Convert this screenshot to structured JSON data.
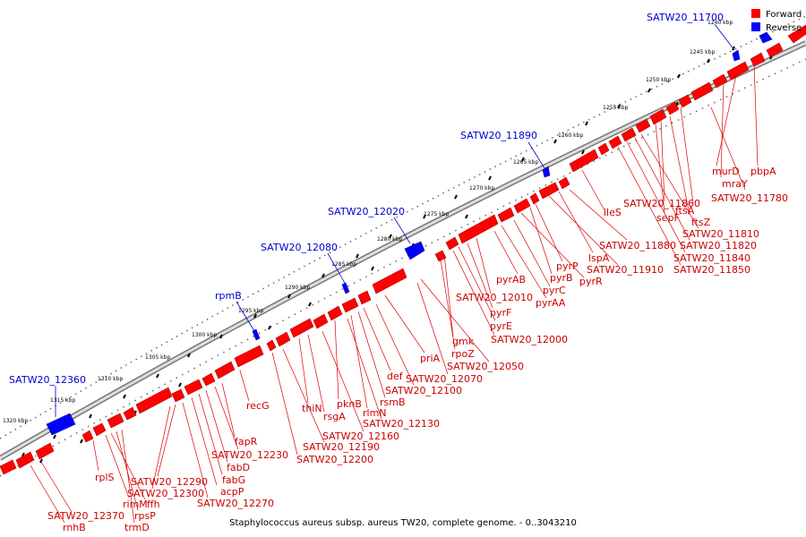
{
  "caption": "Staphylococcus aureus subsp. aureus TW20, complete genome. - 0..3043210",
  "legend": [
    {
      "label": "Forward",
      "color": "#ff0000"
    },
    {
      "label": "Reverse",
      "color": "#0000ff"
    }
  ],
  "colors": {
    "forward": "#ff0000",
    "forward_dark": "#aa0000",
    "reverse": "#0000ff",
    "reverse_dark": "#000099",
    "backbone": "#999999",
    "reverse_label": "#0000cc",
    "forward_label": "#cc0000"
  },
  "scale": {
    "unit": "kbp",
    "tick_labels": [
      "1240 kbp",
      "1245 kbp",
      "1250 kbp",
      "1255 kbp",
      "1260 kbp",
      "1265 kbp",
      "1270 kbp",
      "1275 kbp",
      "1280 kbp",
      "1285 kbp",
      "1290 kbp",
      "1295 kbp",
      "1300 kbp",
      "1305 kbp",
      "1310 kbp",
      "1315 kbp",
      "1320 kbp"
    ]
  },
  "reverse_labels": [
    "SATW20_11700",
    "SATW20_11890",
    "SATW20_12020",
    "SATW20_12080",
    "rpmB",
    "SATW20_12360"
  ],
  "forward_labels": [
    "pbpA",
    "murD",
    "mraY",
    "SATW20_11780",
    "ftsA",
    "ftsZ",
    "SATW20_11860",
    "sepF",
    "SATW20_11810",
    "SATW20_11820",
    "SATW20_11840",
    "SATW20_11850",
    "ileS",
    "SATW20_11880",
    "lspA",
    "SATW20_11910",
    "pyrP",
    "pyrB",
    "pyrR",
    "pyrC",
    "pyrAA",
    "pyrAB",
    "SATW20_12010",
    "pyrF",
    "pyrE",
    "SATW20_12000",
    "gmk",
    "rpoZ",
    "priA",
    "SATW20_12050",
    "def",
    "SATW20_12070",
    "SATW20_12100",
    "rsmB",
    "rlmN",
    "pknB",
    "SATW20_12130",
    "thiN",
    "rsgA",
    "SATW20_12160",
    "SATW20_12190",
    "SATW20_12200",
    "recG",
    "fapR",
    "SATW20_12230",
    "fabD",
    "fabG",
    "acpP",
    "SATW20_12270",
    "SATW20_12290",
    "SATW20_12300",
    "rplS",
    "rimM",
    "ffh",
    "rpsP",
    "trmD",
    "SATW20_12370",
    "rnhB"
  ]
}
